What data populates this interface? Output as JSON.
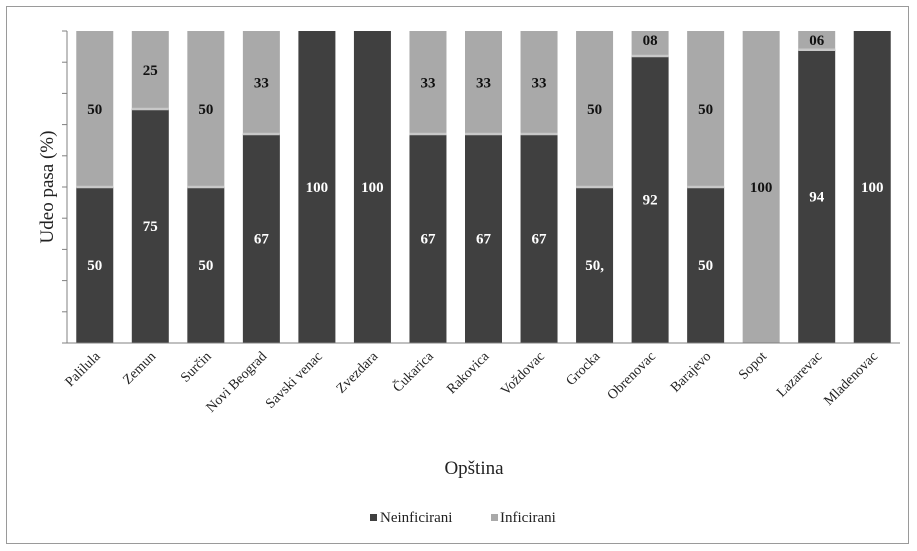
{
  "chart_data": {
    "type": "bar",
    "stacked": true,
    "xlabel": "Opština",
    "ylabel": "Udeo pasa (%)",
    "ylim": [
      0,
      100
    ],
    "grid": false,
    "legend_position": "bottom",
    "categories": [
      "Palilula",
      "Zemun",
      "Surčin",
      "Novi Beograd",
      "Savski venac",
      "Zvezdara",
      "Čukarica",
      "Rakovica",
      "Voždovac",
      "Grocka",
      "Obrenovac",
      "Barajevo",
      "Sopot",
      "Lazarevac",
      "Mladenovac"
    ],
    "series": [
      {
        "name": "Neinficirani",
        "color": "#404040",
        "values": [
          50,
          75,
          50,
          67,
          100,
          100,
          67,
          67,
          67,
          50,
          92,
          50,
          0,
          94,
          100
        ],
        "labels": [
          "50",
          "75",
          "50",
          "67",
          "100",
          "100",
          "67",
          "67",
          "67",
          "50,",
          "92",
          "50",
          "",
          "94",
          "100"
        ]
      },
      {
        "name": "Inficirani",
        "color": "#a9a9a9",
        "values": [
          50,
          25,
          50,
          33,
          0,
          0,
          33,
          33,
          33,
          50,
          8,
          50,
          100,
          6,
          0
        ],
        "labels": [
          "50",
          "25",
          "50",
          "33",
          "",
          "",
          "33",
          "33",
          "33",
          "50",
          "08",
          "50",
          "100",
          "06",
          ""
        ]
      }
    ]
  }
}
